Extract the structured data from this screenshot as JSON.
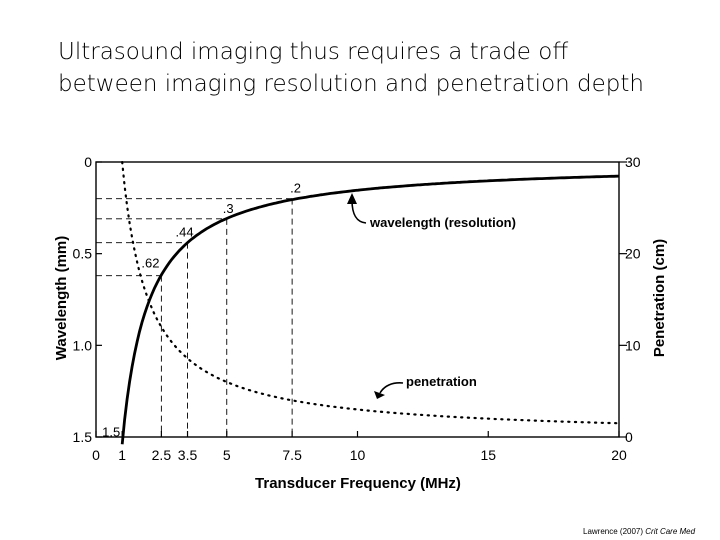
{
  "slide": {
    "title_line1": "Ultrasound imaging thus requires a trade off",
    "title_line2": "between imaging resolution and penetration depth",
    "citation_author": "Lawrence (2007)",
    "citation_journal": "Crit Care Med"
  },
  "chart_data": {
    "type": "line",
    "xlabel": "Transducer Frequency (MHz)",
    "ylabel_left": "Wavelength (mm)",
    "ylabel_right": "Penetration (cm)",
    "xlim": [
      0,
      20
    ],
    "ylim_left": [
      0,
      1.5
    ],
    "ylim_right": [
      0,
      30
    ],
    "left_axis_inverted": true,
    "x_ticks": [
      "0",
      "1",
      "2.5",
      "3.5",
      "5",
      "7.5",
      "10",
      "15",
      "20"
    ],
    "x_tick_values": [
      0,
      1,
      2.5,
      3.5,
      5,
      7.5,
      10,
      15,
      20
    ],
    "y_left_ticks": [
      "0",
      "0.5",
      "1.0",
      "1.5"
    ],
    "y_left_tick_values": [
      0,
      0.5,
      1.0,
      1.5
    ],
    "y_right_ticks": [
      "30",
      "20",
      "10",
      "0"
    ],
    "y_right_tick_values": [
      30,
      20,
      10,
      0
    ],
    "series": [
      {
        "name": "wavelength (resolution)",
        "style": "solid",
        "axis": "left",
        "x": [
          1,
          1.5,
          2,
          2.5,
          3,
          3.5,
          4,
          5,
          6,
          7.5,
          10,
          12.5,
          15,
          17.5,
          20
        ],
        "y": [
          1.54,
          1.03,
          0.77,
          0.62,
          0.51,
          0.44,
          0.385,
          0.31,
          0.26,
          0.2,
          0.154,
          0.123,
          0.103,
          0.088,
          0.077
        ]
      },
      {
        "name": "penetration",
        "style": "dotted",
        "axis": "right",
        "x": [
          1,
          1.5,
          2,
          2.5,
          3,
          3.5,
          4,
          5,
          6,
          7.5,
          10,
          12.5,
          15,
          17.5,
          20
        ],
        "y": [
          30,
          20,
          15,
          12,
          10,
          8.6,
          7.5,
          6,
          5,
          4,
          3,
          2.4,
          2,
          1.7,
          1.5
        ]
      }
    ],
    "annotations": [
      {
        "x": 7.5,
        "y": 0.2,
        "label": ".2"
      },
      {
        "x": 5,
        "y": 0.31,
        "label": ".3"
      },
      {
        "x": 3.5,
        "y": 0.44,
        "label": ".44"
      },
      {
        "x": 2.5,
        "y": 0.62,
        "label": ".62"
      },
      {
        "x": 1,
        "y": 1.54,
        "label": "1.5"
      }
    ],
    "series_labels": [
      {
        "series": "wavelength (resolution)",
        "label": "wavelength (resolution)"
      },
      {
        "series": "penetration",
        "label": "penetration"
      }
    ]
  }
}
